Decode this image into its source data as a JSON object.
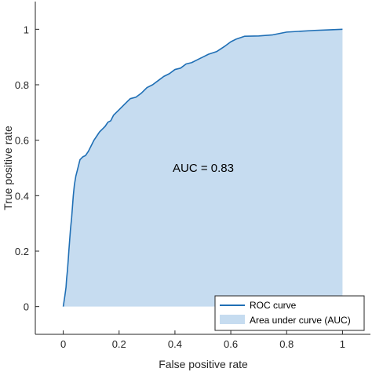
{
  "chart_data": {
    "type": "area",
    "xlabel": "False positive rate",
    "ylabel": "True positive rate",
    "xlim": [
      -0.1,
      1.1
    ],
    "ylim": [
      -0.1,
      1.1
    ],
    "xticks": [
      0,
      0.2,
      0.4,
      0.6,
      0.8,
      1
    ],
    "yticks": [
      0,
      0.2,
      0.4,
      0.6,
      0.8,
      1
    ],
    "xtick_labels": [
      "0",
      "0.2",
      "0.4",
      "0.6",
      "0.8",
      "1"
    ],
    "ytick_labels": [
      "0",
      "0.2",
      "0.4",
      "0.6",
      "0.8",
      "1"
    ],
    "annotation": "AUC = 0.83",
    "legend_position": "bottom-right",
    "colors": {
      "curve": "#1f6fb5",
      "area": "#c6dcf0",
      "axis": "#262626"
    },
    "series": [
      {
        "name": "ROC curve",
        "x": [
          0,
          0.003,
          0.006,
          0.01,
          0.012,
          0.015,
          0.018,
          0.02,
          0.023,
          0.026,
          0.03,
          0.033,
          0.036,
          0.04,
          0.045,
          0.05,
          0.055,
          0.06,
          0.07,
          0.08,
          0.09,
          0.1,
          0.11,
          0.12,
          0.13,
          0.14,
          0.15,
          0.16,
          0.17,
          0.18,
          0.2,
          0.22,
          0.24,
          0.26,
          0.28,
          0.3,
          0.32,
          0.34,
          0.36,
          0.38,
          0.4,
          0.42,
          0.44,
          0.46,
          0.48,
          0.5,
          0.52,
          0.55,
          0.58,
          0.6,
          0.62,
          0.65,
          0.7,
          0.75,
          0.8,
          0.85,
          0.9,
          0.95,
          1.0
        ],
        "y": [
          0,
          0.02,
          0.04,
          0.07,
          0.1,
          0.13,
          0.17,
          0.2,
          0.24,
          0.28,
          0.32,
          0.36,
          0.4,
          0.44,
          0.47,
          0.49,
          0.51,
          0.53,
          0.54,
          0.545,
          0.56,
          0.58,
          0.6,
          0.615,
          0.63,
          0.64,
          0.65,
          0.665,
          0.67,
          0.69,
          0.71,
          0.73,
          0.75,
          0.755,
          0.77,
          0.79,
          0.8,
          0.815,
          0.83,
          0.84,
          0.855,
          0.86,
          0.875,
          0.88,
          0.89,
          0.9,
          0.91,
          0.92,
          0.94,
          0.955,
          0.965,
          0.975,
          0.976,
          0.98,
          0.99,
          0.993,
          0.996,
          0.998,
          1.0
        ]
      },
      {
        "name": "Area under curve (AUC)"
      }
    ]
  }
}
